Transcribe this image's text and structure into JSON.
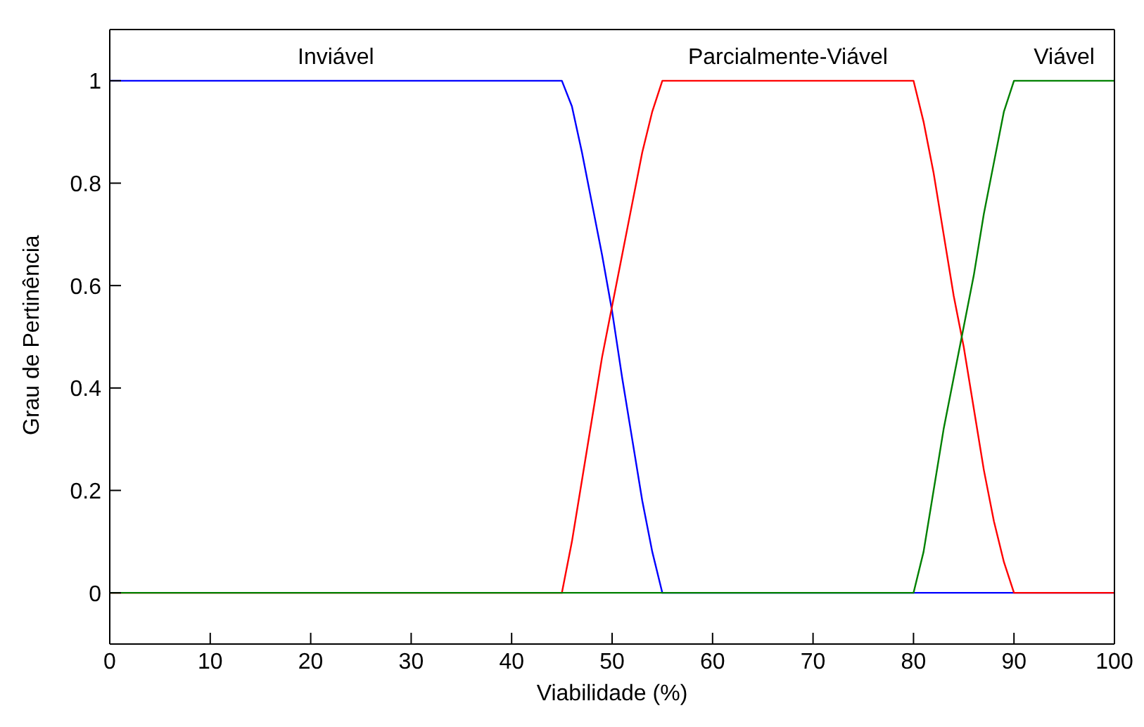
{
  "chart_data": {
    "type": "line",
    "xlabel": "Viabilidade (%)",
    "ylabel": "Grau de Pertinência",
    "x": [
      0,
      22.5,
      45,
      46,
      47,
      48,
      49,
      50,
      51,
      52,
      53,
      54,
      55,
      67.5,
      80,
      81,
      82,
      83,
      84,
      85,
      86,
      87,
      88,
      89,
      90,
      95,
      100
    ],
    "series": [
      {
        "name": "Inviável",
        "color": "#0000ff",
        "values": [
          1,
          1,
          1,
          0.95,
          0.86,
          0.76,
          0.66,
          0.55,
          0.42,
          0.3,
          0.18,
          0.08,
          0,
          0,
          0,
          0,
          0,
          0,
          0,
          0,
          0,
          0,
          0,
          0,
          0,
          0,
          0
        ]
      },
      {
        "name": "Parcialmente-Viável",
        "color": "#ff0000",
        "values": [
          0,
          0,
          0,
          0.1,
          0.22,
          0.34,
          0.46,
          0.56,
          0.66,
          0.76,
          0.86,
          0.94,
          1,
          1,
          1,
          0.92,
          0.82,
          0.7,
          0.58,
          0.48,
          0.36,
          0.24,
          0.14,
          0.06,
          0,
          0,
          0
        ]
      },
      {
        "name": "Viável",
        "color": "#008000",
        "values": [
          0,
          0,
          0,
          0,
          0,
          0,
          0,
          0,
          0,
          0,
          0,
          0,
          0,
          0,
          0,
          0.08,
          0.2,
          0.32,
          0.42,
          0.52,
          0.62,
          0.74,
          0.84,
          0.94,
          1,
          1,
          1
        ]
      }
    ],
    "xlim": [
      0,
      100
    ],
    "xticks": [
      0,
      10,
      20,
      30,
      40,
      50,
      60,
      70,
      80,
      90,
      100
    ],
    "ylim": [
      -0.1,
      1.1
    ],
    "yticks": [
      0,
      0.2,
      0.4,
      0.6,
      0.8,
      1
    ],
    "grid": false,
    "legend": false,
    "marker": "none",
    "line_style": "solid"
  }
}
